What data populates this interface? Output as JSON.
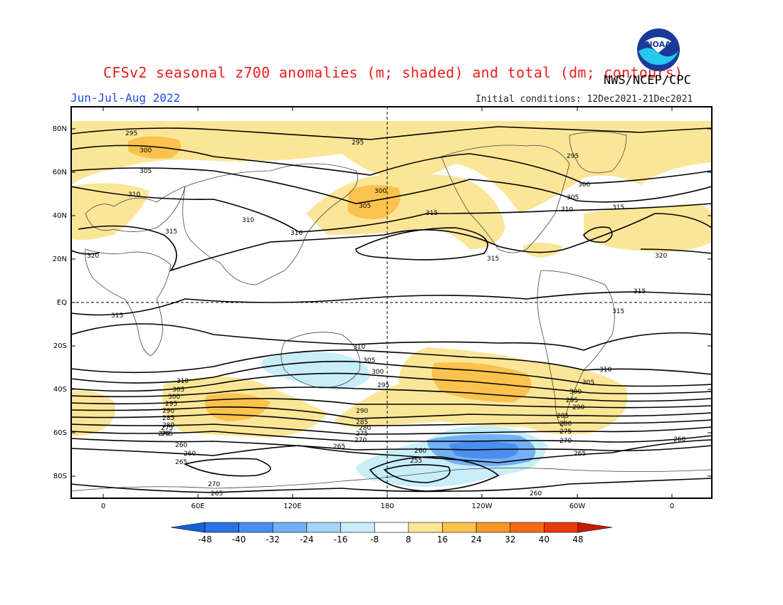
{
  "header": {
    "title": "CFSv2 seasonal z700 anomalies (m; shaded) and total (dm; contours)",
    "agency": "NWS/NCEP/CPC",
    "season": "Jun-Jul-Aug 2022",
    "initial_conditions": "Initial conditions: 12Dec2021-21Dec2021",
    "logo_text": "NOAA"
  },
  "axes": {
    "lat_ticks": [
      "80N",
      "60N",
      "40N",
      "20N",
      "EQ",
      "20S",
      "40S",
      "60S",
      "80S"
    ],
    "lon_ticks": [
      "0",
      "60E",
      "120E",
      "180",
      "120W",
      "60W",
      "0"
    ]
  },
  "colorbar": {
    "ticks": [
      "-48",
      "-40",
      "-32",
      "-24",
      "-16",
      "-8",
      "8",
      "16",
      "24",
      "32",
      "40",
      "48"
    ],
    "colors": [
      "#1460d8",
      "#2a74e6",
      "#4a8ef0",
      "#74b0f6",
      "#a4d4f6",
      "#c8eefa",
      "#ffffff",
      "#fbe698",
      "#fbc24e",
      "#f8962a",
      "#f46a16",
      "#e83a0a",
      "#c81a00"
    ]
  },
  "contour_labels": [
    {
      "text": "295"
    },
    {
      "text": "300"
    },
    {
      "text": "305"
    },
    {
      "text": "310"
    },
    {
      "text": "315"
    },
    {
      "text": "320"
    },
    {
      "text": "295"
    },
    {
      "text": "300"
    },
    {
      "text": "305"
    },
    {
      "text": "310"
    },
    {
      "text": "315"
    },
    {
      "text": "295"
    },
    {
      "text": "300"
    },
    {
      "text": "305"
    },
    {
      "text": "310"
    },
    {
      "text": "315"
    },
    {
      "text": "320"
    },
    {
      "text": "315"
    },
    {
      "text": "315"
    },
    {
      "text": "315"
    },
    {
      "text": "310"
    },
    {
      "text": "315"
    },
    {
      "text": "310"
    },
    {
      "text": "305"
    },
    {
      "text": "300"
    },
    {
      "text": "295"
    },
    {
      "text": "290"
    },
    {
      "text": "285"
    },
    {
      "text": "280"
    },
    {
      "text": "275"
    },
    {
      "text": "270"
    },
    {
      "text": "265"
    },
    {
      "text": "310"
    },
    {
      "text": "305"
    },
    {
      "text": "300"
    },
    {
      "text": "295"
    },
    {
      "text": "290"
    },
    {
      "text": "285"
    },
    {
      "text": "280"
    },
    {
      "text": "275"
    },
    {
      "text": "270"
    },
    {
      "text": "310"
    },
    {
      "text": "305"
    },
    {
      "text": "300"
    },
    {
      "text": "295"
    },
    {
      "text": "290"
    },
    {
      "text": "285"
    },
    {
      "text": "280"
    },
    {
      "text": "275"
    },
    {
      "text": "270"
    },
    {
      "text": "265"
    },
    {
      "text": "260"
    },
    {
      "text": "260"
    },
    {
      "text": "265"
    },
    {
      "text": "270"
    },
    {
      "text": "265"
    },
    {
      "text": "265"
    },
    {
      "text": "260"
    },
    {
      "text": "255"
    },
    {
      "text": "260"
    },
    {
      "text": "260"
    }
  ]
}
